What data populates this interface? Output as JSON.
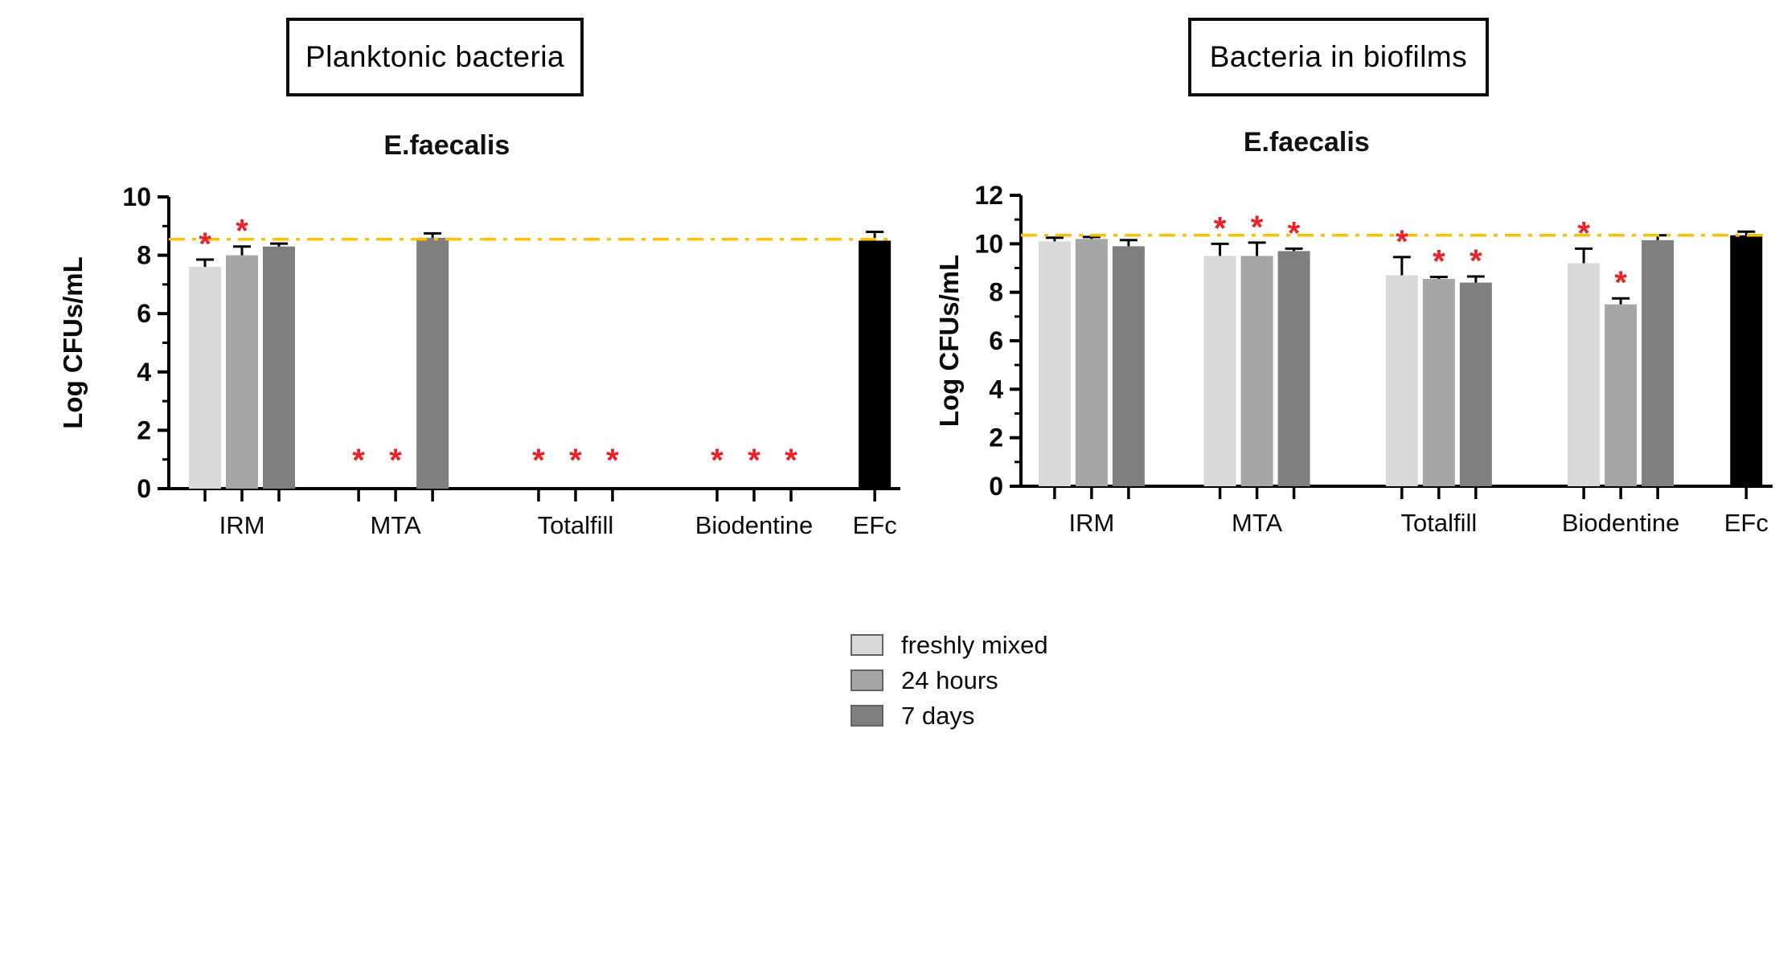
{
  "page": {
    "background": "#ffffff"
  },
  "panels": [
    {
      "box_title": "Planktonic bacteria"
    },
    {
      "box_title": "Bacteria in biofilms"
    }
  ],
  "legend": {
    "items": [
      {
        "label": "freshly mixed",
        "color": "#d9d9d9"
      },
      {
        "label": "24 hours",
        "color": "#a6a6a6"
      },
      {
        "label": "7 days",
        "color": "#7f7f7f"
      }
    ]
  },
  "colors": {
    "axis": "#000000",
    "threshold_line": "#ffc000",
    "significance_marker": "#ec2127",
    "efc_bar": "#000000",
    "error_bar": "#000000"
  },
  "chart_data": [
    {
      "type": "bar",
      "title": "E.faecalis",
      "ylabel": "Log CFUs/mL",
      "ylim": [
        0,
        10
      ],
      "ytick_step": 2,
      "grid": false,
      "threshold_line": {
        "value": 8.55,
        "style": "dash-dot",
        "color": "#ffc000"
      },
      "categories": [
        "IRM",
        "MTA",
        "Totalfill",
        "Biodentine",
        "EFc"
      ],
      "series": [
        "freshly mixed",
        "24 hours",
        "7 days"
      ],
      "groups": [
        {
          "category": "IRM",
          "bars": [
            {
              "series": "freshly mixed",
              "value": 7.6,
              "error": 0.25,
              "significant": true
            },
            {
              "series": "24 hours",
              "value": 8.0,
              "error": 0.3,
              "significant": true
            },
            {
              "series": "7 days",
              "value": 8.3,
              "error": 0.1,
              "significant": false
            }
          ]
        },
        {
          "category": "MTA",
          "bars": [
            {
              "series": "freshly mixed",
              "value": 0,
              "error": 0,
              "significant": true
            },
            {
              "series": "24 hours",
              "value": 0,
              "error": 0,
              "significant": true
            },
            {
              "series": "7 days",
              "value": 8.6,
              "error": 0.15,
              "significant": false
            }
          ]
        },
        {
          "category": "Totalfill",
          "bars": [
            {
              "series": "freshly mixed",
              "value": 0,
              "error": 0,
              "significant": true
            },
            {
              "series": "24 hours",
              "value": 0,
              "error": 0,
              "significant": true
            },
            {
              "series": "7 days",
              "value": 0,
              "error": 0,
              "significant": true
            }
          ]
        },
        {
          "category": "Biodentine",
          "bars": [
            {
              "series": "freshly mixed",
              "value": 0,
              "error": 0,
              "significant": true
            },
            {
              "series": "24 hours",
              "value": 0,
              "error": 0,
              "significant": true
            },
            {
              "series": "7 days",
              "value": 0,
              "error": 0,
              "significant": true
            }
          ]
        },
        {
          "category": "EFc",
          "bars": [
            {
              "series": "EFc",
              "value": 8.5,
              "error": 0.3,
              "significant": false,
              "color": "#000000"
            }
          ]
        }
      ]
    },
    {
      "type": "bar",
      "title": "E.faecalis",
      "ylabel": "Log CFUs/mL",
      "ylim": [
        0,
        12
      ],
      "ytick_step": 2,
      "grid": false,
      "threshold_line": {
        "value": 10.35,
        "style": "dash-dot",
        "color": "#ffc000"
      },
      "categories": [
        "IRM",
        "MTA",
        "Totalfill",
        "Biodentine",
        "EFc"
      ],
      "series": [
        "freshly mixed",
        "24 hours",
        "7 days"
      ],
      "groups": [
        {
          "category": "IRM",
          "bars": [
            {
              "series": "freshly mixed",
              "value": 10.1,
              "error": 0.15,
              "significant": false
            },
            {
              "series": "24 hours",
              "value": 10.2,
              "error": 0.08,
              "significant": false
            },
            {
              "series": "7 days",
              "value": 9.9,
              "error": 0.25,
              "significant": false
            }
          ]
        },
        {
          "category": "MTA",
          "bars": [
            {
              "series": "freshly mixed",
              "value": 9.5,
              "error": 0.5,
              "significant": true
            },
            {
              "series": "24 hours",
              "value": 9.5,
              "error": 0.55,
              "significant": true
            },
            {
              "series": "7 days",
              "value": 9.7,
              "error": 0.1,
              "significant": true
            }
          ]
        },
        {
          "category": "Totalfill",
          "bars": [
            {
              "series": "freshly mixed",
              "value": 8.7,
              "error": 0.75,
              "significant": true
            },
            {
              "series": "24 hours",
              "value": 8.55,
              "error": 0.08,
              "significant": true
            },
            {
              "series": "7 days",
              "value": 8.4,
              "error": 0.25,
              "significant": true
            }
          ]
        },
        {
          "category": "Biodentine",
          "bars": [
            {
              "series": "freshly mixed",
              "value": 9.2,
              "error": 0.6,
              "significant": true
            },
            {
              "series": "24 hours",
              "value": 7.5,
              "error": 0.25,
              "significant": true
            },
            {
              "series": "7 days",
              "value": 10.15,
              "error": 0.2,
              "significant": false
            }
          ]
        },
        {
          "category": "EFc",
          "bars": [
            {
              "series": "EFc",
              "value": 10.35,
              "error": 0.15,
              "significant": false,
              "color": "#000000"
            }
          ]
        }
      ]
    }
  ]
}
